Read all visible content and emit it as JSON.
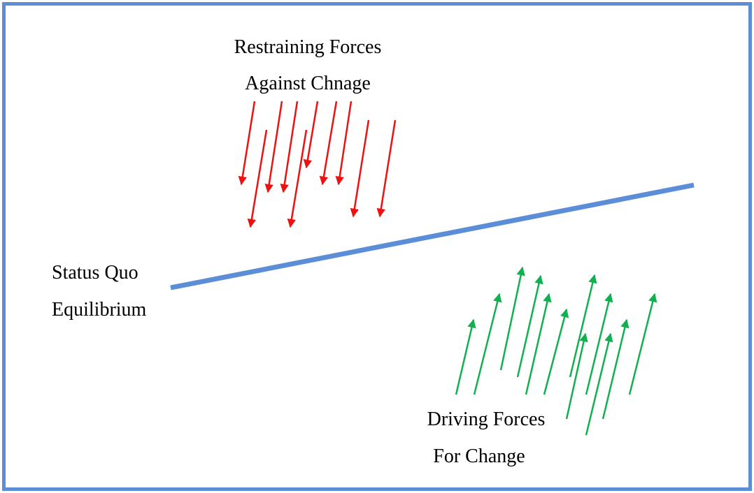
{
  "restraining": {
    "line1": "Restraining Forces",
    "line2": "Against Chnage",
    "color": "#ee1111"
  },
  "driving": {
    "line1": "Driving Forces",
    "line2": "For Change",
    "color": "#10b050"
  },
  "equilibrium": {
    "line1": "Status Quo",
    "line2": "Equilibrium",
    "color": "#5b8ed6"
  },
  "frame_color": "#5b8ed6"
}
